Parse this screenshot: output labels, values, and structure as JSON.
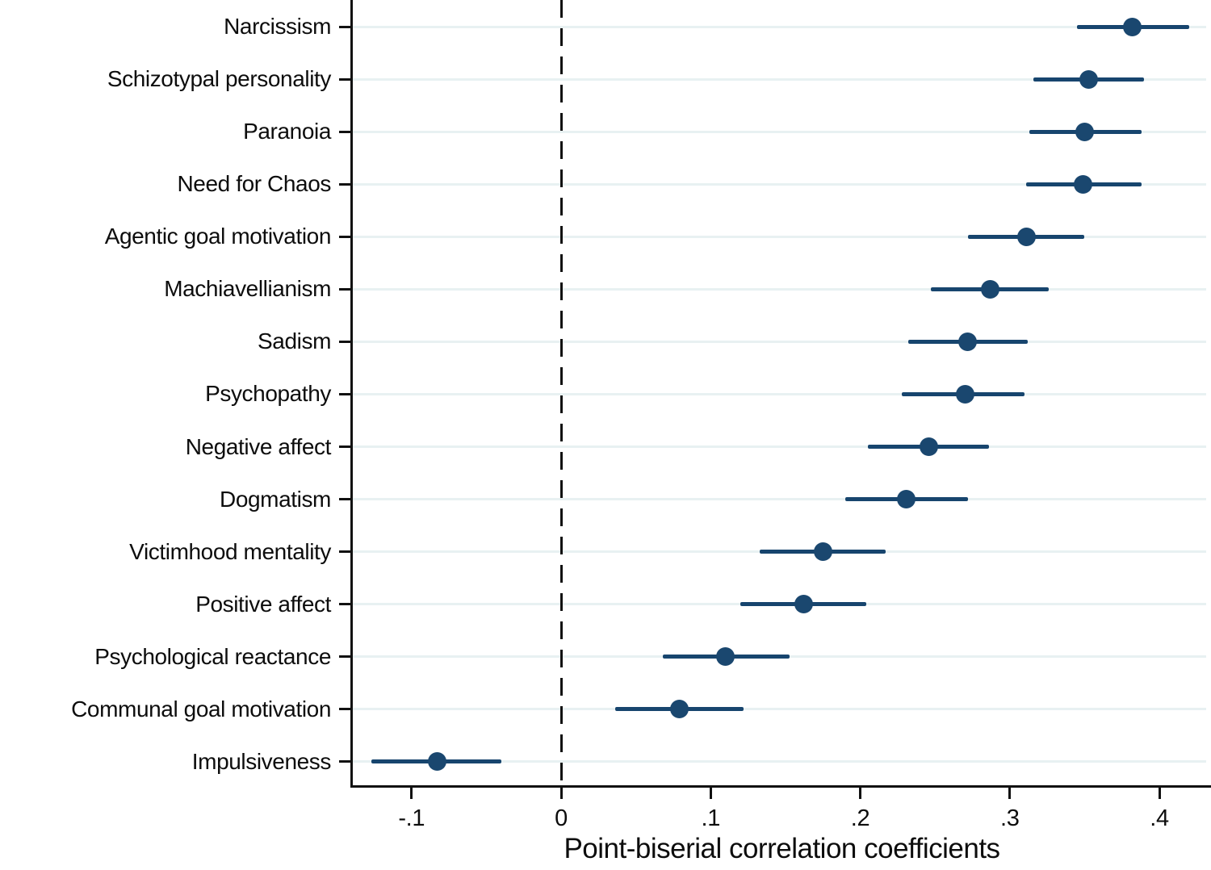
{
  "chart_data": {
    "type": "scatter",
    "subtype": "horizontal-dot-whisker-coefficient-plot",
    "title": "",
    "xlabel": "Point-biserial correlation coefficients",
    "ylabel": "",
    "categories": [
      "Narcissism",
      "Schizotypal personality",
      "Paranoia",
      "Need for Chaos",
      "Agentic goal motivation",
      "Machiavellianism",
      "Sadism",
      "Psychopathy",
      "Negative affect",
      "Dogmatism",
      "Victimhood mentality",
      "Positive affect",
      "Psychological reactance",
      "Communal goal motivation",
      "Impulsiveness"
    ],
    "series": [
      {
        "name": "Point-biserial correlation coefficient",
        "values": [
          0.382,
          0.353,
          0.35,
          0.349,
          0.311,
          0.287,
          0.272,
          0.27,
          0.246,
          0.231,
          0.175,
          0.162,
          0.11,
          0.079,
          -0.083
        ],
        "ci_low": [
          0.345,
          0.316,
          0.313,
          0.311,
          0.272,
          0.247,
          0.232,
          0.228,
          0.205,
          0.19,
          0.133,
          0.12,
          0.068,
          0.036,
          -0.127
        ],
        "ci_high": [
          0.42,
          0.39,
          0.388,
          0.388,
          0.35,
          0.326,
          0.312,
          0.31,
          0.286,
          0.272,
          0.217,
          0.204,
          0.153,
          0.122,
          -0.04
        ]
      }
    ],
    "x_ticks": [
      -0.1,
      0,
      0.1,
      0.2,
      0.3,
      0.4
    ],
    "x_tick_labels": [
      "-.1",
      "0",
      ".1",
      ".2",
      ".3",
      ".4"
    ],
    "xlim": [
      -0.139,
      0.435
    ],
    "reference_line": {
      "x": 0,
      "style": "dashed",
      "color": "#111111"
    },
    "grid": "horizontal",
    "legend": "none",
    "marker_color": "#1a476f",
    "ci_color": "#17456e",
    "gridline_color": "#e8f1f2",
    "axis_color": "#111111",
    "background_color": "#ffffff"
  }
}
